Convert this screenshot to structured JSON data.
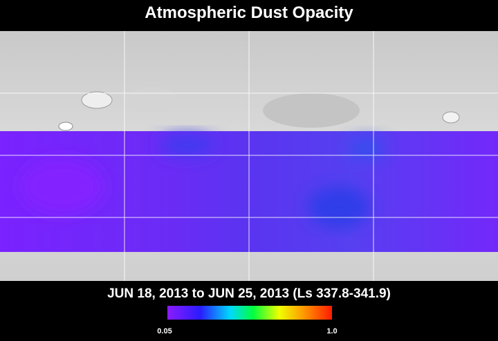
{
  "header": {
    "title": "Atmospheric Dust Opacity"
  },
  "map": {
    "period": "JUN 18, 2013 to JUN 25, 2013 (Ls 337.8-341.9)"
  },
  "legend": {
    "min_label": "0.05",
    "max_label": "1.0"
  }
}
